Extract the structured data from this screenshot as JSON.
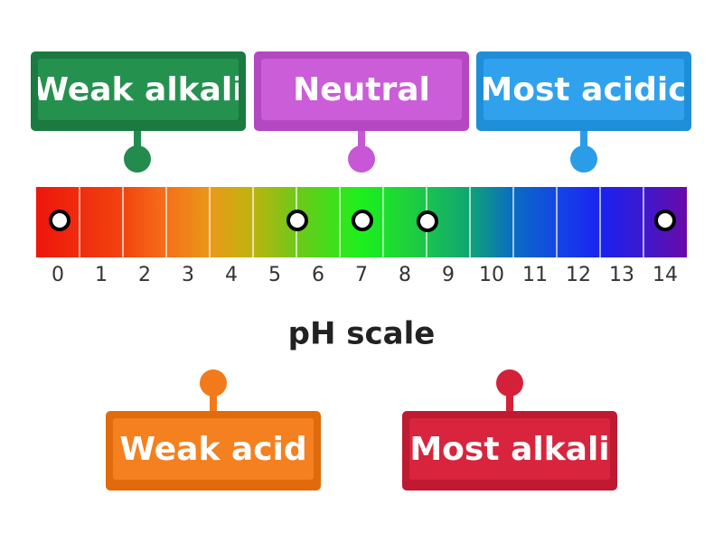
{
  "title": "pH scale",
  "scale": [
    "0",
    "1",
    "2",
    "3",
    "4",
    "5",
    "6",
    "7",
    "8",
    "9",
    "10",
    "11",
    "12",
    "13",
    "14"
  ],
  "labels": [
    "Weak alkali",
    "Neutral",
    "Most acidic",
    "Weak acid",
    "Most alkali"
  ]
}
